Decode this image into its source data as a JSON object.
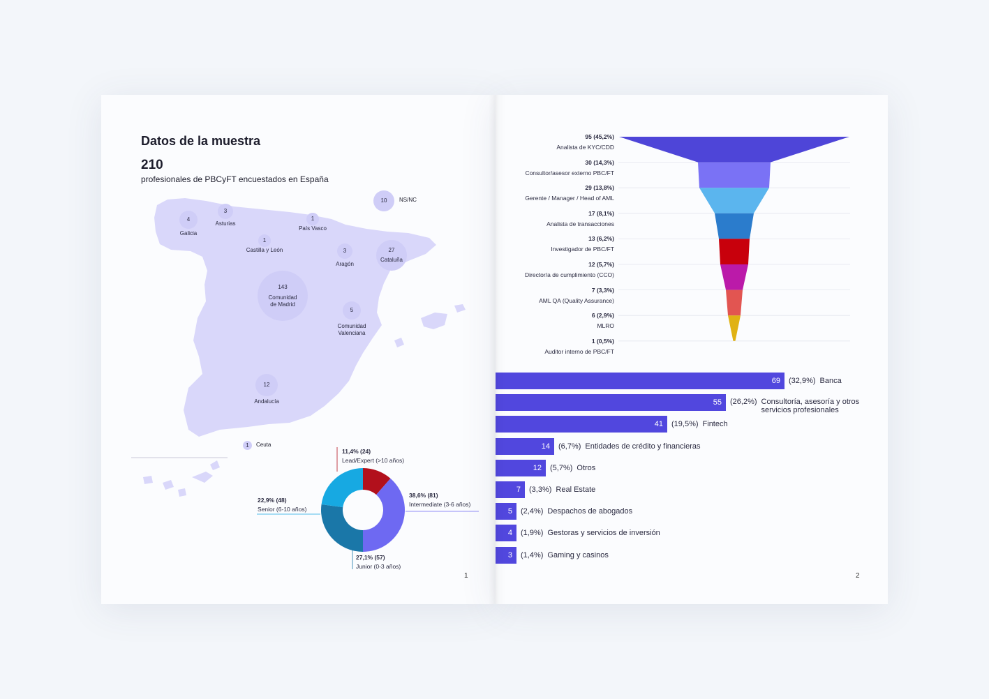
{
  "left_page": {
    "title": "Datos de la muestra",
    "total": "210",
    "subtitle": "profesionales de PBCyFT encuestados en España",
    "page_number": "1"
  },
  "right_page": {
    "page_number": "2"
  },
  "colors": {
    "map_fill": "#d9d7fa",
    "bubble": "#cfcdf7",
    "bar": "#5147de",
    "funnel": [
      "#4e45d8",
      "#7a72f5",
      "#5bb5ee",
      "#2b7ccc",
      "#c8000c",
      "#bb1aa9",
      "#e25551",
      "#e0b214"
    ],
    "donut": [
      "#6e69f2",
      "#1a77a8",
      "#17a9e2",
      "#b2101c"
    ]
  },
  "map_regions": [
    {
      "value": "4",
      "label": "Galicia"
    },
    {
      "value": "3",
      "label": "Asturias"
    },
    {
      "value": "1",
      "label": "País Vasco"
    },
    {
      "value": "1",
      "label": "Castilla y León"
    },
    {
      "value": "3",
      "label": "Aragón"
    },
    {
      "value": "27",
      "label": "Cataluña"
    },
    {
      "value": "143",
      "label": "Comunidad de Madrid",
      "label_lines": [
        "Comunidad",
        "de Madrid"
      ]
    },
    {
      "value": "5",
      "label": "Comunidad Valenciana",
      "label_lines": [
        "Comunidad",
        "Valenciana"
      ]
    },
    {
      "value": "12",
      "label": "Andalucía"
    },
    {
      "value": "1",
      "label": "Ceuta"
    },
    {
      "value": "10",
      "label": "NS/NC"
    }
  ],
  "chart_data": [
    {
      "type": "pie",
      "variant": "donut",
      "categories": [
        "Intermediate (3-6 años)",
        "Junior (0-3 años)",
        "Senior (6-10 años)",
        "Lead/Expert (>10 años)"
      ],
      "values": [
        81,
        57,
        48,
        24
      ],
      "value_labels": [
        "38,6% (81)",
        "27,1% (57)",
        "22,9% (48)",
        "11,4% (24)"
      ],
      "percent": [
        38.6,
        27.1,
        22.9,
        11.4
      ]
    },
    {
      "type": "bar",
      "variant": "funnel",
      "categories": [
        "Analista de KYC/CDD",
        "Consultor/asesor externo PBC/FT",
        "Gerente / Manager / Head of AML",
        "Analista de transacciones",
        "Investigador de PBC/FT",
        "Director/a de cumplimiento (CCO)",
        "AML QA (Quality Assurance)",
        "MLRO",
        "Auditor interno de PBC/FT"
      ],
      "values": [
        95,
        30,
        29,
        17,
        13,
        12,
        7,
        6,
        1
      ],
      "value_labels": [
        "95 (45,2%)",
        "30 (14,3%)",
        "29 (13,8%)",
        "17 (8,1%)",
        "13 (6,2%)",
        "12 (5,7%)",
        "7 (3,3%)",
        "6 (2,9%)",
        "1 (0,5%)"
      ]
    },
    {
      "type": "bar",
      "orientation": "horizontal",
      "categories": [
        "Banca",
        "Consultoría, asesoría y otros servicios profesionales",
        "Fintech",
        "Entidades de crédito y financieras",
        "Otros",
        "Real Estate",
        "Despachos de abogados",
        "Gestoras y servicios de inversión",
        "Gaming y casinos"
      ],
      "category_lines": [
        [
          "Banca"
        ],
        [
          "Consultoría, asesoría y otros",
          "servicios profesionales"
        ],
        [
          "Fintech"
        ],
        [
          "Entidades de crédito y financieras"
        ],
        [
          "Otros"
        ],
        [
          "Real Estate"
        ],
        [
          "Despachos de abogados"
        ],
        [
          "Gestoras y servicios de inversión"
        ],
        [
          "Gaming y casinos"
        ]
      ],
      "values": [
        69,
        55,
        41,
        14,
        12,
        7,
        5,
        4,
        3
      ],
      "value_labels": [
        "69",
        "55",
        "41",
        "14",
        "12",
        "7",
        "5",
        "4",
        "3"
      ],
      "percent_labels": [
        "(32,9%)",
        "(26,2%)",
        "(19,5%)",
        "(6,7%)",
        "(5,7%)",
        "(3,3%)",
        "(2,4%)",
        "(1,9%)",
        "(1,4%)"
      ]
    }
  ]
}
